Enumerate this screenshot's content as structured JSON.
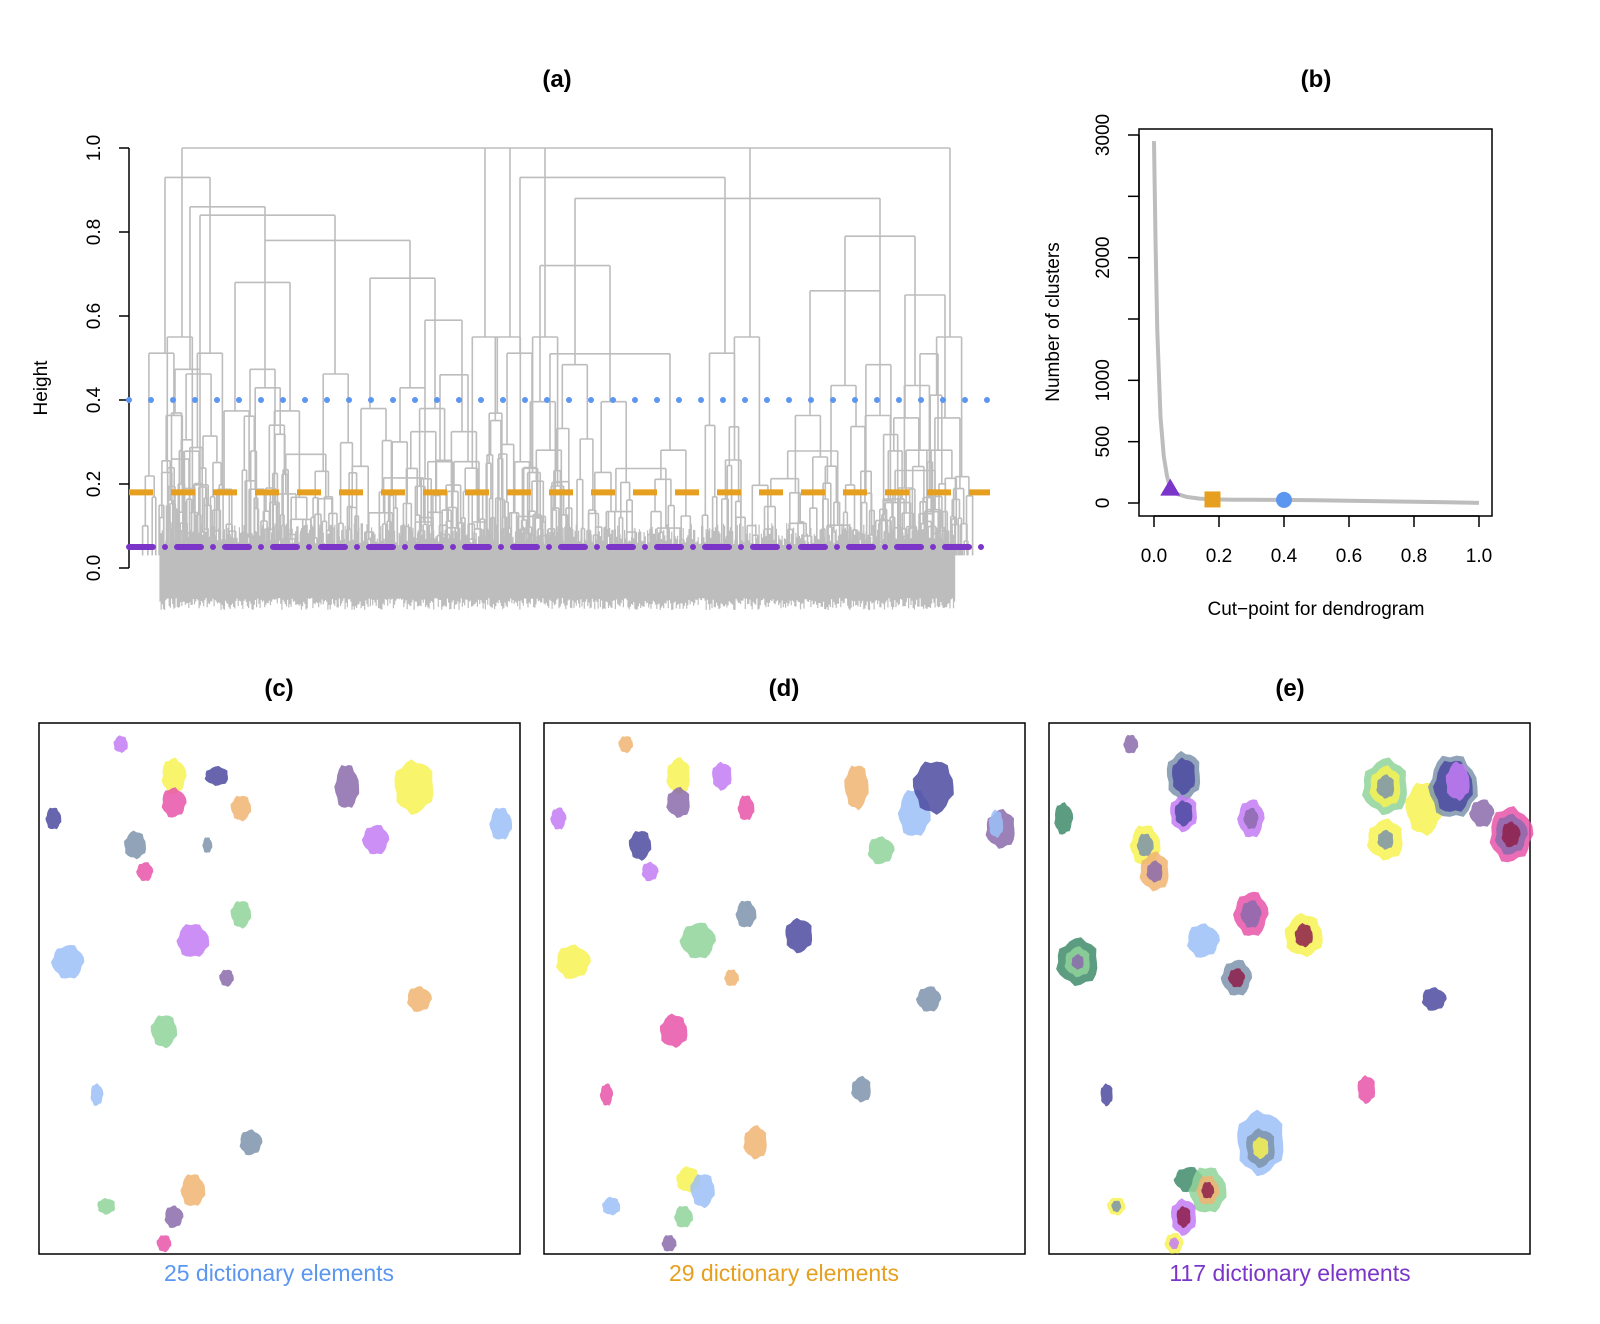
{
  "colors": {
    "tree": "#bdbdbd",
    "blue": "#5b96f0",
    "orange": "#e69f1e",
    "purple": "#7b35c8",
    "green": "#8fd49a",
    "pink": "#e754a9",
    "yellow": "#f7f252",
    "navy": "#4b4aa0",
    "slate": "#7d93ab",
    "lilac": "#c37bf5",
    "mauve": "#8b6aac",
    "peach": "#f0b472",
    "lightblue": "#9cbff7",
    "teal": "#3f8c6b",
    "maroon": "#8e1e4a"
  },
  "chart_data": [
    {
      "id": "a",
      "type": "dendrogram",
      "title": "(a)",
      "xlabel": "",
      "ylabel": "Height",
      "ylim": [
        0,
        1
      ],
      "yticks": [
        "0.0",
        "0.2",
        "0.4",
        "0.6",
        "0.8",
        "1.0"
      ],
      "cut_lines": [
        {
          "height": 0.4,
          "style": "dotted",
          "color": "blue"
        },
        {
          "height": 0.18,
          "style": "dashed",
          "color": "orange"
        },
        {
          "height": 0.05,
          "style": "dotdash",
          "color": "purple"
        }
      ]
    },
    {
      "id": "b",
      "type": "line",
      "title": "(b)",
      "xlabel": "Cut−point for dendrogram",
      "ylabel": "Number of clusters",
      "xlim": [
        0,
        1
      ],
      "ylim": [
        0,
        3000
      ],
      "xticks": [
        "0.0",
        "0.2",
        "0.4",
        "0.6",
        "0.8",
        "1.0"
      ],
      "yticks": [
        "0",
        "500",
        "1000",
        "2000",
        "3000"
      ],
      "series": [
        {
          "name": "clusters",
          "x": [
            0.0,
            0.005,
            0.01,
            0.02,
            0.03,
            0.04,
            0.05,
            0.07,
            0.1,
            0.14,
            0.18,
            0.25,
            0.3,
            0.4,
            0.5,
            0.6,
            0.7,
            0.8,
            0.9,
            1.0
          ],
          "y": [
            2950,
            2100,
            1400,
            700,
            380,
            220,
            117,
            75,
            50,
            36,
            29,
            27,
            26,
            25,
            22,
            18,
            14,
            10,
            6,
            1
          ]
        }
      ],
      "markers": [
        {
          "x": 0.05,
          "y": 117,
          "shape": "triangle",
          "color": "purple"
        },
        {
          "x": 0.18,
          "y": 29,
          "shape": "square",
          "color": "orange"
        },
        {
          "x": 0.4,
          "y": 25,
          "shape": "circle",
          "color": "blue"
        }
      ]
    },
    {
      "id": "c",
      "type": "blob-map",
      "title": "(c)",
      "caption": "25 dictionary elements",
      "caption_color": "blue",
      "blobs": [
        {
          "x": 0.17,
          "y": 0.04,
          "rx": 0.015,
          "ry": 0.016,
          "c": "lilac"
        },
        {
          "x": 0.28,
          "y": 0.1,
          "rx": 0.025,
          "ry": 0.034,
          "c": "yellow"
        },
        {
          "x": 0.37,
          "y": 0.1,
          "rx": 0.025,
          "ry": 0.018,
          "c": "navy"
        },
        {
          "x": 0.64,
          "y": 0.12,
          "rx": 0.025,
          "ry": 0.042,
          "c": "mauve"
        },
        {
          "x": 0.78,
          "y": 0.12,
          "rx": 0.042,
          "ry": 0.05,
          "c": "yellow"
        },
        {
          "x": 0.28,
          "y": 0.15,
          "rx": 0.025,
          "ry": 0.028,
          "c": "pink"
        },
        {
          "x": 0.42,
          "y": 0.16,
          "rx": 0.021,
          "ry": 0.024,
          "c": "peach"
        },
        {
          "x": 0.03,
          "y": 0.18,
          "rx": 0.016,
          "ry": 0.021,
          "c": "navy"
        },
        {
          "x": 0.96,
          "y": 0.19,
          "rx": 0.023,
          "ry": 0.031,
          "c": "lightblue"
        },
        {
          "x": 0.7,
          "y": 0.22,
          "rx": 0.027,
          "ry": 0.028,
          "c": "lilac"
        },
        {
          "x": 0.2,
          "y": 0.23,
          "rx": 0.023,
          "ry": 0.026,
          "c": "slate"
        },
        {
          "x": 0.35,
          "y": 0.23,
          "rx": 0.01,
          "ry": 0.015,
          "c": "slate"
        },
        {
          "x": 0.22,
          "y": 0.28,
          "rx": 0.017,
          "ry": 0.018,
          "c": "pink"
        },
        {
          "x": 0.42,
          "y": 0.36,
          "rx": 0.021,
          "ry": 0.026,
          "c": "green"
        },
        {
          "x": 0.32,
          "y": 0.41,
          "rx": 0.033,
          "ry": 0.032,
          "c": "lilac"
        },
        {
          "x": 0.06,
          "y": 0.45,
          "rx": 0.033,
          "ry": 0.032,
          "c": "lightblue"
        },
        {
          "x": 0.39,
          "y": 0.48,
          "rx": 0.015,
          "ry": 0.016,
          "c": "mauve"
        },
        {
          "x": 0.79,
          "y": 0.52,
          "rx": 0.025,
          "ry": 0.024,
          "c": "peach"
        },
        {
          "x": 0.26,
          "y": 0.58,
          "rx": 0.027,
          "ry": 0.031,
          "c": "green"
        },
        {
          "x": 0.12,
          "y": 0.7,
          "rx": 0.013,
          "ry": 0.021,
          "c": "lightblue"
        },
        {
          "x": 0.44,
          "y": 0.79,
          "rx": 0.023,
          "ry": 0.024,
          "c": "slate"
        },
        {
          "x": 0.32,
          "y": 0.88,
          "rx": 0.025,
          "ry": 0.031,
          "c": "peach"
        },
        {
          "x": 0.14,
          "y": 0.91,
          "rx": 0.019,
          "ry": 0.015,
          "c": "green"
        },
        {
          "x": 0.28,
          "y": 0.93,
          "rx": 0.019,
          "ry": 0.021,
          "c": "mauve"
        },
        {
          "x": 0.26,
          "y": 0.98,
          "rx": 0.015,
          "ry": 0.016,
          "c": "pink"
        }
      ]
    },
    {
      "id": "d",
      "type": "blob-map",
      "title": "(d)",
      "caption": "29 dictionary elements",
      "caption_color": "orange",
      "blobs": [
        {
          "x": 0.17,
          "y": 0.04,
          "rx": 0.015,
          "ry": 0.016,
          "c": "peach"
        },
        {
          "x": 0.28,
          "y": 0.1,
          "rx": 0.025,
          "ry": 0.034,
          "c": "yellow"
        },
        {
          "x": 0.37,
          "y": 0.1,
          "rx": 0.021,
          "ry": 0.026,
          "c": "lilac"
        },
        {
          "x": 0.65,
          "y": 0.12,
          "rx": 0.025,
          "ry": 0.042,
          "c": "peach"
        },
        {
          "x": 0.77,
          "y": 0.17,
          "rx": 0.033,
          "ry": 0.045,
          "c": "lightblue"
        },
        {
          "x": 0.81,
          "y": 0.12,
          "rx": 0.042,
          "ry": 0.05,
          "c": "navy"
        },
        {
          "x": 0.28,
          "y": 0.15,
          "rx": 0.025,
          "ry": 0.028,
          "c": "mauve"
        },
        {
          "x": 0.42,
          "y": 0.16,
          "rx": 0.017,
          "ry": 0.024,
          "c": "pink"
        },
        {
          "x": 0.03,
          "y": 0.18,
          "rx": 0.016,
          "ry": 0.021,
          "c": "lilac"
        },
        {
          "x": 0.95,
          "y": 0.2,
          "rx": 0.031,
          "ry": 0.036,
          "c": "mauve"
        },
        {
          "x": 0.94,
          "y": 0.19,
          "rx": 0.015,
          "ry": 0.026,
          "c": "lightblue"
        },
        {
          "x": 0.7,
          "y": 0.24,
          "rx": 0.027,
          "ry": 0.026,
          "c": "green"
        },
        {
          "x": 0.2,
          "y": 0.23,
          "rx": 0.023,
          "ry": 0.028,
          "c": "navy"
        },
        {
          "x": 0.22,
          "y": 0.28,
          "rx": 0.017,
          "ry": 0.018,
          "c": "lilac"
        },
        {
          "x": 0.42,
          "y": 0.36,
          "rx": 0.021,
          "ry": 0.026,
          "c": "slate"
        },
        {
          "x": 0.32,
          "y": 0.41,
          "rx": 0.036,
          "ry": 0.034,
          "c": "green"
        },
        {
          "x": 0.53,
          "y": 0.4,
          "rx": 0.029,
          "ry": 0.032,
          "c": "navy"
        },
        {
          "x": 0.06,
          "y": 0.45,
          "rx": 0.035,
          "ry": 0.032,
          "c": "yellow"
        },
        {
          "x": 0.39,
          "y": 0.48,
          "rx": 0.015,
          "ry": 0.016,
          "c": "peach"
        },
        {
          "x": 0.8,
          "y": 0.52,
          "rx": 0.025,
          "ry": 0.024,
          "c": "slate"
        },
        {
          "x": 0.27,
          "y": 0.58,
          "rx": 0.029,
          "ry": 0.031,
          "c": "pink"
        },
        {
          "x": 0.13,
          "y": 0.7,
          "rx": 0.013,
          "ry": 0.021,
          "c": "pink"
        },
        {
          "x": 0.66,
          "y": 0.69,
          "rx": 0.021,
          "ry": 0.024,
          "c": "slate"
        },
        {
          "x": 0.44,
          "y": 0.79,
          "rx": 0.025,
          "ry": 0.031,
          "c": "peach"
        },
        {
          "x": 0.3,
          "y": 0.86,
          "rx": 0.025,
          "ry": 0.024,
          "c": "yellow"
        },
        {
          "x": 0.33,
          "y": 0.88,
          "rx": 0.025,
          "ry": 0.032,
          "c": "lightblue"
        },
        {
          "x": 0.14,
          "y": 0.91,
          "rx": 0.019,
          "ry": 0.017,
          "c": "lightblue"
        },
        {
          "x": 0.29,
          "y": 0.93,
          "rx": 0.019,
          "ry": 0.021,
          "c": "green"
        },
        {
          "x": 0.26,
          "y": 0.98,
          "rx": 0.015,
          "ry": 0.016,
          "c": "mauve"
        }
      ]
    },
    {
      "id": "e",
      "type": "blob-map",
      "title": "(e)",
      "caption": "117 dictionary elements",
      "caption_color": "purple",
      "blobs": [
        {
          "x": 0.17,
          "y": 0.04,
          "rx": 0.015,
          "ry": 0.018,
          "c": "mauve"
        },
        {
          "x": 0.28,
          "y": 0.1,
          "rx": 0.036,
          "ry": 0.046,
          "c": "slate"
        },
        {
          "x": 0.28,
          "y": 0.1,
          "rx": 0.025,
          "ry": 0.034,
          "c": "navy"
        },
        {
          "x": 0.28,
          "y": 0.17,
          "rx": 0.029,
          "ry": 0.034,
          "c": "lilac"
        },
        {
          "x": 0.28,
          "y": 0.17,
          "rx": 0.019,
          "ry": 0.024,
          "c": "navy"
        },
        {
          "x": 0.42,
          "y": 0.18,
          "rx": 0.027,
          "ry": 0.036,
          "c": "lilac"
        },
        {
          "x": 0.42,
          "y": 0.18,
          "rx": 0.015,
          "ry": 0.02,
          "c": "mauve"
        },
        {
          "x": 0.03,
          "y": 0.18,
          "rx": 0.019,
          "ry": 0.03,
          "c": "teal"
        },
        {
          "x": 0.7,
          "y": 0.12,
          "rx": 0.048,
          "ry": 0.052,
          "c": "green"
        },
        {
          "x": 0.7,
          "y": 0.12,
          "rx": 0.033,
          "ry": 0.038,
          "c": "yellow"
        },
        {
          "x": 0.7,
          "y": 0.12,
          "rx": 0.019,
          "ry": 0.022,
          "c": "slate"
        },
        {
          "x": 0.78,
          "y": 0.16,
          "rx": 0.038,
          "ry": 0.05,
          "c": "yellow"
        },
        {
          "x": 0.84,
          "y": 0.12,
          "rx": 0.05,
          "ry": 0.06,
          "c": "slate"
        },
        {
          "x": 0.84,
          "y": 0.12,
          "rx": 0.04,
          "ry": 0.05,
          "c": "navy"
        },
        {
          "x": 0.85,
          "y": 0.11,
          "rx": 0.025,
          "ry": 0.036,
          "c": "lilac"
        },
        {
          "x": 0.9,
          "y": 0.17,
          "rx": 0.025,
          "ry": 0.026,
          "c": "mauve"
        },
        {
          "x": 0.7,
          "y": 0.22,
          "rx": 0.038,
          "ry": 0.038,
          "c": "yellow"
        },
        {
          "x": 0.7,
          "y": 0.22,
          "rx": 0.017,
          "ry": 0.018,
          "c": "slate"
        },
        {
          "x": 0.96,
          "y": 0.21,
          "rx": 0.044,
          "ry": 0.052,
          "c": "pink"
        },
        {
          "x": 0.96,
          "y": 0.21,
          "rx": 0.033,
          "ry": 0.038,
          "c": "mauve"
        },
        {
          "x": 0.96,
          "y": 0.21,
          "rx": 0.019,
          "ry": 0.024,
          "c": "maroon"
        },
        {
          "x": 0.2,
          "y": 0.23,
          "rx": 0.031,
          "ry": 0.038,
          "c": "yellow"
        },
        {
          "x": 0.2,
          "y": 0.23,
          "rx": 0.017,
          "ry": 0.022,
          "c": "slate"
        },
        {
          "x": 0.22,
          "y": 0.28,
          "rx": 0.031,
          "ry": 0.036,
          "c": "peach"
        },
        {
          "x": 0.22,
          "y": 0.28,
          "rx": 0.017,
          "ry": 0.02,
          "c": "mauve"
        },
        {
          "x": 0.42,
          "y": 0.36,
          "rx": 0.035,
          "ry": 0.042,
          "c": "pink"
        },
        {
          "x": 0.42,
          "y": 0.36,
          "rx": 0.021,
          "ry": 0.026,
          "c": "mauve"
        },
        {
          "x": 0.53,
          "y": 0.4,
          "rx": 0.04,
          "ry": 0.04,
          "c": "yellow"
        },
        {
          "x": 0.53,
          "y": 0.4,
          "rx": 0.019,
          "ry": 0.022,
          "c": "maroon"
        },
        {
          "x": 0.32,
          "y": 0.41,
          "rx": 0.033,
          "ry": 0.032,
          "c": "lightblue"
        },
        {
          "x": 0.06,
          "y": 0.45,
          "rx": 0.044,
          "ry": 0.044,
          "c": "teal"
        },
        {
          "x": 0.06,
          "y": 0.45,
          "rx": 0.027,
          "ry": 0.028,
          "c": "green"
        },
        {
          "x": 0.06,
          "y": 0.45,
          "rx": 0.013,
          "ry": 0.014,
          "c": "mauve"
        },
        {
          "x": 0.39,
          "y": 0.48,
          "rx": 0.031,
          "ry": 0.034,
          "c": "slate"
        },
        {
          "x": 0.39,
          "y": 0.48,
          "rx": 0.017,
          "ry": 0.018,
          "c": "maroon"
        },
        {
          "x": 0.8,
          "y": 0.52,
          "rx": 0.025,
          "ry": 0.022,
          "c": "navy"
        },
        {
          "x": 0.66,
          "y": 0.69,
          "rx": 0.019,
          "ry": 0.026,
          "c": "pink"
        },
        {
          "x": 0.12,
          "y": 0.7,
          "rx": 0.013,
          "ry": 0.021,
          "c": "navy"
        },
        {
          "x": 0.44,
          "y": 0.79,
          "rx": 0.05,
          "ry": 0.06,
          "c": "lightblue"
        },
        {
          "x": 0.44,
          "y": 0.8,
          "rx": 0.031,
          "ry": 0.036,
          "c": "slate"
        },
        {
          "x": 0.44,
          "y": 0.8,
          "rx": 0.017,
          "ry": 0.02,
          "c": "yellow"
        },
        {
          "x": 0.29,
          "y": 0.86,
          "rx": 0.029,
          "ry": 0.024,
          "c": "teal"
        },
        {
          "x": 0.33,
          "y": 0.88,
          "rx": 0.038,
          "ry": 0.044,
          "c": "green"
        },
        {
          "x": 0.33,
          "y": 0.88,
          "rx": 0.023,
          "ry": 0.028,
          "c": "peach"
        },
        {
          "x": 0.33,
          "y": 0.88,
          "rx": 0.013,
          "ry": 0.016,
          "c": "maroon"
        },
        {
          "x": 0.14,
          "y": 0.91,
          "rx": 0.019,
          "ry": 0.017,
          "c": "yellow"
        },
        {
          "x": 0.14,
          "y": 0.91,
          "rx": 0.01,
          "ry": 0.011,
          "c": "slate"
        },
        {
          "x": 0.28,
          "y": 0.93,
          "rx": 0.027,
          "ry": 0.034,
          "c": "lilac"
        },
        {
          "x": 0.28,
          "y": 0.93,
          "rx": 0.015,
          "ry": 0.02,
          "c": "maroon"
        },
        {
          "x": 0.26,
          "y": 0.98,
          "rx": 0.019,
          "ry": 0.02,
          "c": "yellow"
        },
        {
          "x": 0.26,
          "y": 0.98,
          "rx": 0.01,
          "ry": 0.011,
          "c": "lilac"
        }
      ]
    }
  ]
}
